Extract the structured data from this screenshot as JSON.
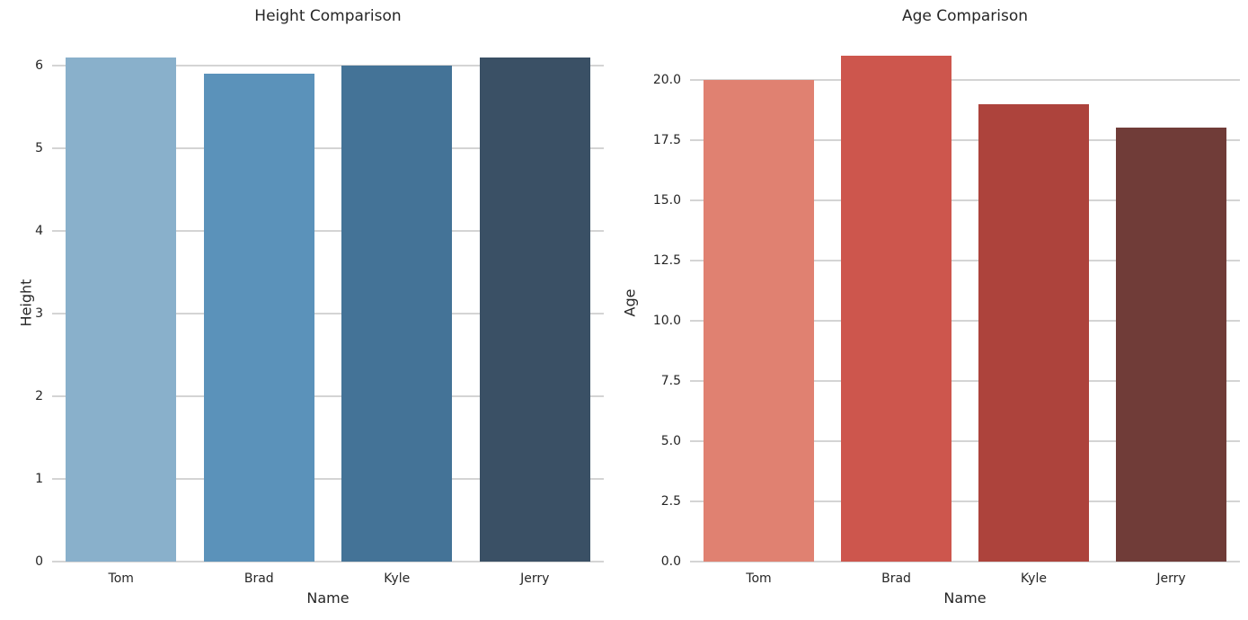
{
  "figure": {
    "background": "#ffffff",
    "grid_color": "#d4d4d4",
    "text_color": "#262626"
  },
  "chart_data": [
    {
      "type": "bar",
      "title": "Height Comparison",
      "xlabel": "Name",
      "ylabel": "Height",
      "categories": [
        "Tom",
        "Brad",
        "Kyle",
        "Jerry"
      ],
      "values": [
        6.1,
        5.9,
        6.0,
        6.1
      ],
      "bar_colors": [
        "#89b0cb",
        "#5b92ba",
        "#447397",
        "#3a5065"
      ],
      "yticks": [
        0,
        1,
        2,
        3,
        4,
        5,
        6
      ],
      "ytick_labels": [
        "0",
        "1",
        "2",
        "3",
        "4",
        "5",
        "6"
      ],
      "ylim": [
        0,
        6.25
      ],
      "bar_width_fraction": 0.8,
      "grid": true,
      "legend": "none"
    },
    {
      "type": "bar",
      "title": "Age Comparison",
      "xlabel": "Name",
      "ylabel": "Age",
      "categories": [
        "Tom",
        "Brad",
        "Kyle",
        "Jerry"
      ],
      "values": [
        20,
        21,
        19,
        18
      ],
      "bar_colors": [
        "#e08171",
        "#cd564d",
        "#ad433c",
        "#703c38"
      ],
      "yticks": [
        0,
        2.5,
        5,
        7.5,
        10,
        12.5,
        15,
        17.5,
        20
      ],
      "ytick_labels": [
        "0.0",
        "2.5",
        "5.0",
        "7.5",
        "10.0",
        "12.5",
        "15.0",
        "17.5",
        "20.0"
      ],
      "ylim": [
        0,
        21.45
      ],
      "bar_width_fraction": 0.8,
      "grid": true,
      "legend": "none"
    }
  ]
}
